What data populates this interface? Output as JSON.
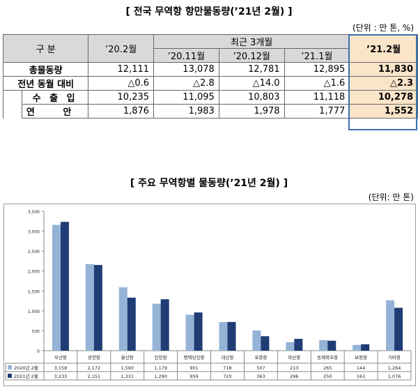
{
  "table_title": "[ 전국 무역항 항만물동량(’21년 2월) ]",
  "table_unit": "(단위 : 만 톤, %)",
  "table": {
    "col_division": "구 분",
    "col_prev_year": "’20.2월",
    "col_recent": "최근 3개월",
    "col_recent_months": [
      "’20.11월",
      "’20.12월",
      "’21.1월"
    ],
    "col_current": "’21.2월",
    "rows": [
      {
        "label": "총물동량",
        "values": [
          "12,111",
          "13,078",
          "12,781",
          "12,895"
        ],
        "current": "11,830"
      },
      {
        "label": "전년 동월 대비",
        "values": [
          "△0.6",
          "△2.8",
          "△14.0",
          "△1.6"
        ],
        "current": "△2.3"
      },
      {
        "label": "수 출 입",
        "values": [
          "10,235",
          "11,095",
          "10,803",
          "11,118"
        ],
        "current": "10,278"
      },
      {
        "label": "연 안",
        "values": [
          "1,876",
          "1,983",
          "1,978",
          "1,777"
        ],
        "current": "1,552"
      }
    ]
  },
  "chart_title": "[ 주요 무역항별 물동량(’21년 2월) ]",
  "chart_unit": "(단위: 만 톤)",
  "colors": {
    "series2020": "#95b3d7",
    "series2021": "#1f3c74",
    "highlight": "#fbe5c9",
    "highlight_border": "#3a6fb4"
  },
  "chart_data": {
    "type": "bar",
    "categories": [
      "부산항",
      "광양항",
      "울산항",
      "인천항",
      "평택당진항",
      "대산항",
      "포항항",
      "마산항",
      "동해묵호항",
      "보령항",
      "기타항"
    ],
    "series": [
      {
        "name": "2020년 2월",
        "values": [
          3158,
          2172,
          1590,
          1179,
          901,
          718,
          507,
          213,
          265,
          144,
          1264
        ]
      },
      {
        "name": "2021년 2월",
        "values": [
          3233,
          2151,
          1331,
          1290,
          959,
          720,
          363,
          296,
          250,
          161,
          1076
        ]
      }
    ],
    "series_labels": [
      [
        "3,158",
        "2,172",
        "1,590",
        "1,179",
        "901",
        "718",
        "507",
        "213",
        "265",
        "144",
        "1,264"
      ],
      [
        "3,233",
        "2,151",
        "1,331",
        "1,290",
        "959",
        "720",
        "363",
        "296",
        "250",
        "161",
        "1,076"
      ]
    ],
    "ylim": [
      0,
      3500
    ],
    "yticks": [
      0,
      500,
      1000,
      1500,
      2000,
      2500,
      3000,
      3500
    ],
    "ytick_labels": [
      "0",
      "500",
      "1,000",
      "1,500",
      "2,000",
      "2,500",
      "3,000",
      "3,500"
    ],
    "grid": false,
    "legend": "data-table"
  }
}
